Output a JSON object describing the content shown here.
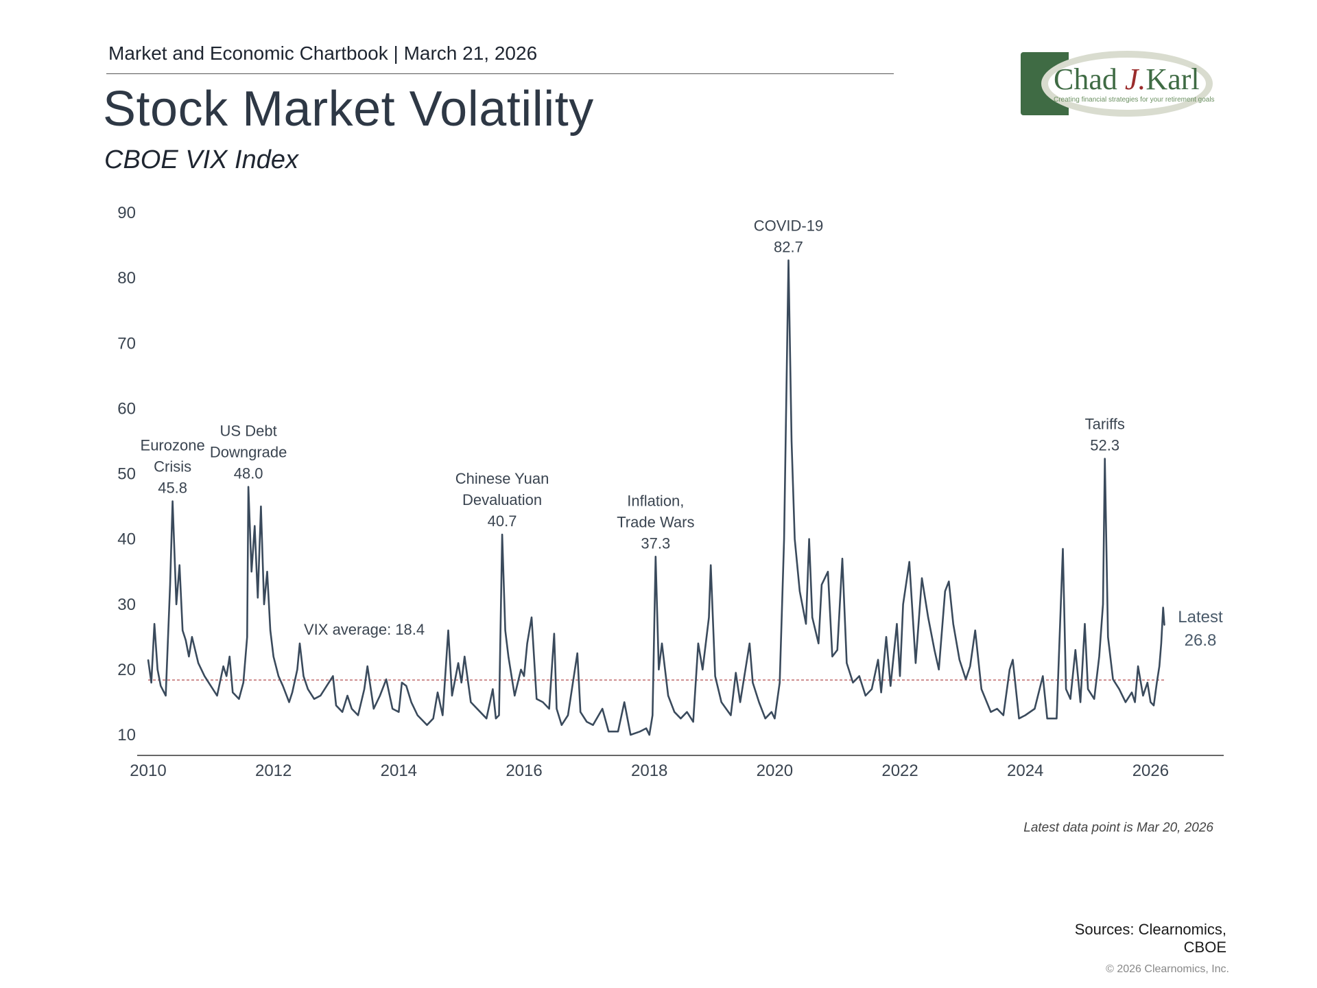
{
  "header": {
    "line": "Market and Economic Chartbook | March 21, 2026",
    "title": "Stock Market Volatility",
    "subtitle": "CBOE VIX Index"
  },
  "logo": {
    "name_part1": "Chad ",
    "name_initial": "J.",
    "name_part2": "Karl",
    "tagline": "Creating financial strategies for your retirement goals",
    "colors": {
      "green": "#3f6b44",
      "red": "#9b2c2c"
    }
  },
  "footer": {
    "latest_note": "Latest data point is Mar 20, 2026",
    "sources_line1": "Sources: Clearnomics,",
    "sources_line2": "CBOE",
    "copyright": "© 2026 Clearnomics, Inc."
  },
  "chart_data": {
    "type": "line",
    "title": "",
    "xlabel": "",
    "ylabel": "",
    "ylim": [
      10,
      90
    ],
    "xlim": [
      2010.0,
      2027.2
    ],
    "yticks": [
      10,
      20,
      30,
      40,
      50,
      60,
      70,
      80,
      90
    ],
    "xticks": [
      "2010",
      "2012",
      "2014",
      "2016",
      "2018",
      "2020",
      "2022",
      "2024",
      "2026"
    ],
    "grid": false,
    "colors": {
      "line": "#3a4a5c",
      "average": "#c0696b",
      "text": "#3a4450"
    },
    "average": {
      "value": 18.4,
      "label": "VIX average: 18.4"
    },
    "latest": {
      "label_line1": "Latest",
      "value": "26.8"
    },
    "annotations": [
      {
        "lines": [
          "Eurozone",
          "Crisis",
          "45.8"
        ],
        "x": 2010.39,
        "y": 45.8
      },
      {
        "lines": [
          "US Debt",
          "Downgrade",
          "48.0"
        ],
        "x": 2011.6,
        "y": 48.0
      },
      {
        "lines": [
          "Chinese Yuan",
          "Devaluation",
          "40.7"
        ],
        "x": 2015.65,
        "y": 40.7
      },
      {
        "lines": [
          "Inflation,",
          "Trade Wars",
          "37.3"
        ],
        "x": 2018.1,
        "y": 37.3
      },
      {
        "lines": [
          "COVID-19",
          "82.7"
        ],
        "x": 2020.22,
        "y": 82.7
      },
      {
        "lines": [
          "Tariffs",
          "52.3"
        ],
        "x": 2025.27,
        "y": 52.3
      }
    ],
    "series": [
      {
        "points": [
          [
            2010.0,
            21.5
          ],
          [
            2010.05,
            18.0
          ],
          [
            2010.1,
            27.0
          ],
          [
            2010.15,
            20.0
          ],
          [
            2010.2,
            17.5
          ],
          [
            2010.28,
            16.0
          ],
          [
            2010.35,
            33.0
          ],
          [
            2010.39,
            45.8
          ],
          [
            2010.45,
            30.0
          ],
          [
            2010.5,
            36.0
          ],
          [
            2010.55,
            26.0
          ],
          [
            2010.6,
            24.5
          ],
          [
            2010.65,
            22.0
          ],
          [
            2010.7,
            25.0
          ],
          [
            2010.8,
            21.0
          ],
          [
            2010.9,
            19.0
          ],
          [
            2011.0,
            17.5
          ],
          [
            2011.1,
            16.0
          ],
          [
            2011.2,
            20.5
          ],
          [
            2011.25,
            19.0
          ],
          [
            2011.3,
            22.0
          ],
          [
            2011.35,
            16.5
          ],
          [
            2011.45,
            15.5
          ],
          [
            2011.52,
            18.0
          ],
          [
            2011.58,
            25.0
          ],
          [
            2011.6,
            48.0
          ],
          [
            2011.65,
            35.0
          ],
          [
            2011.7,
            42.0
          ],
          [
            2011.75,
            31.0
          ],
          [
            2011.8,
            45.0
          ],
          [
            2011.85,
            30.0
          ],
          [
            2011.9,
            35.0
          ],
          [
            2011.95,
            26.0
          ],
          [
            2012.0,
            22.0
          ],
          [
            2012.08,
            19.0
          ],
          [
            2012.15,
            17.5
          ],
          [
            2012.25,
            15.0
          ],
          [
            2012.3,
            16.5
          ],
          [
            2012.38,
            20.0
          ],
          [
            2012.42,
            24.0
          ],
          [
            2012.48,
            19.0
          ],
          [
            2012.55,
            17.0
          ],
          [
            2012.65,
            15.5
          ],
          [
            2012.75,
            16.0
          ],
          [
            2012.85,
            17.5
          ],
          [
            2012.95,
            19.0
          ],
          [
            2013.0,
            14.5
          ],
          [
            2013.1,
            13.5
          ],
          [
            2013.18,
            16.0
          ],
          [
            2013.25,
            14.0
          ],
          [
            2013.35,
            13.0
          ],
          [
            2013.45,
            17.0
          ],
          [
            2013.5,
            20.5
          ],
          [
            2013.6,
            14.0
          ],
          [
            2013.7,
            16.0
          ],
          [
            2013.8,
            18.5
          ],
          [
            2013.9,
            14.0
          ],
          [
            2014.0,
            13.5
          ],
          [
            2014.05,
            18.0
          ],
          [
            2014.12,
            17.5
          ],
          [
            2014.2,
            15.0
          ],
          [
            2014.3,
            13.0
          ],
          [
            2014.45,
            11.5
          ],
          [
            2014.55,
            12.5
          ],
          [
            2014.62,
            16.5
          ],
          [
            2014.7,
            13.0
          ],
          [
            2014.79,
            26.0
          ],
          [
            2014.85,
            16.0
          ],
          [
            2014.95,
            21.0
          ],
          [
            2015.0,
            18.0
          ],
          [
            2015.05,
            22.0
          ],
          [
            2015.15,
            15.0
          ],
          [
            2015.3,
            13.5
          ],
          [
            2015.4,
            12.5
          ],
          [
            2015.5,
            17.0
          ],
          [
            2015.55,
            12.5
          ],
          [
            2015.6,
            13.0
          ],
          [
            2015.65,
            40.7
          ],
          [
            2015.7,
            26.0
          ],
          [
            2015.75,
            22.0
          ],
          [
            2015.85,
            16.0
          ],
          [
            2015.95,
            20.0
          ],
          [
            2016.0,
            19.0
          ],
          [
            2016.05,
            24.0
          ],
          [
            2016.12,
            28.0
          ],
          [
            2016.2,
            15.5
          ],
          [
            2016.3,
            15.0
          ],
          [
            2016.4,
            14.0
          ],
          [
            2016.48,
            25.5
          ],
          [
            2016.52,
            14.0
          ],
          [
            2016.6,
            11.5
          ],
          [
            2016.7,
            13.0
          ],
          [
            2016.85,
            22.5
          ],
          [
            2016.9,
            13.5
          ],
          [
            2017.0,
            12.0
          ],
          [
            2017.1,
            11.5
          ],
          [
            2017.25,
            14.0
          ],
          [
            2017.35,
            10.5
          ],
          [
            2017.5,
            10.5
          ],
          [
            2017.6,
            15.0
          ],
          [
            2017.7,
            10.0
          ],
          [
            2017.85,
            10.5
          ],
          [
            2017.95,
            11.0
          ],
          [
            2018.0,
            10.0
          ],
          [
            2018.05,
            13.0
          ],
          [
            2018.1,
            37.3
          ],
          [
            2018.15,
            20.0
          ],
          [
            2018.2,
            24.0
          ],
          [
            2018.3,
            16.0
          ],
          [
            2018.4,
            13.5
          ],
          [
            2018.5,
            12.5
          ],
          [
            2018.6,
            13.5
          ],
          [
            2018.7,
            12.0
          ],
          [
            2018.78,
            24.0
          ],
          [
            2018.85,
            20.0
          ],
          [
            2018.95,
            28.0
          ],
          [
            2018.98,
            36.0
          ],
          [
            2019.05,
            19.0
          ],
          [
            2019.15,
            15.0
          ],
          [
            2019.3,
            13.0
          ],
          [
            2019.38,
            19.5
          ],
          [
            2019.45,
            15.0
          ],
          [
            2019.6,
            24.0
          ],
          [
            2019.65,
            18.0
          ],
          [
            2019.75,
            15.0
          ],
          [
            2019.85,
            12.5
          ],
          [
            2019.95,
            13.5
          ],
          [
            2020.0,
            12.5
          ],
          [
            2020.08,
            18.0
          ],
          [
            2020.15,
            40.0
          ],
          [
            2020.22,
            82.7
          ],
          [
            2020.27,
            55.0
          ],
          [
            2020.32,
            40.0
          ],
          [
            2020.4,
            32.0
          ],
          [
            2020.5,
            27.0
          ],
          [
            2020.55,
            40.0
          ],
          [
            2020.6,
            28.0
          ],
          [
            2020.7,
            24.0
          ],
          [
            2020.75,
            33.0
          ],
          [
            2020.85,
            35.0
          ],
          [
            2020.92,
            22.0
          ],
          [
            2021.0,
            23.0
          ],
          [
            2021.08,
            37.0
          ],
          [
            2021.15,
            21.0
          ],
          [
            2021.25,
            18.0
          ],
          [
            2021.35,
            19.0
          ],
          [
            2021.45,
            16.0
          ],
          [
            2021.55,
            17.0
          ],
          [
            2021.65,
            21.5
          ],
          [
            2021.7,
            16.5
          ],
          [
            2021.78,
            25.0
          ],
          [
            2021.85,
            17.5
          ],
          [
            2021.95,
            27.0
          ],
          [
            2022.0,
            19.0
          ],
          [
            2022.05,
            30.0
          ],
          [
            2022.15,
            36.5
          ],
          [
            2022.25,
            21.0
          ],
          [
            2022.35,
            34.0
          ],
          [
            2022.45,
            28.0
          ],
          [
            2022.55,
            23.0
          ],
          [
            2022.62,
            20.0
          ],
          [
            2022.72,
            32.0
          ],
          [
            2022.78,
            33.5
          ],
          [
            2022.85,
            27.0
          ],
          [
            2022.95,
            21.5
          ],
          [
            2023.05,
            18.5
          ],
          [
            2023.12,
            20.5
          ],
          [
            2023.2,
            26.0
          ],
          [
            2023.3,
            17.0
          ],
          [
            2023.45,
            13.5
          ],
          [
            2023.55,
            14.0
          ],
          [
            2023.65,
            13.0
          ],
          [
            2023.75,
            20.0
          ],
          [
            2023.8,
            21.5
          ],
          [
            2023.9,
            12.5
          ],
          [
            2024.0,
            13.0
          ],
          [
            2024.15,
            14.0
          ],
          [
            2024.28,
            19.0
          ],
          [
            2024.35,
            12.5
          ],
          [
            2024.5,
            12.5
          ],
          [
            2024.6,
            38.5
          ],
          [
            2024.65,
            17.0
          ],
          [
            2024.72,
            15.5
          ],
          [
            2024.8,
            23.0
          ],
          [
            2024.88,
            15.0
          ],
          [
            2024.95,
            27.0
          ],
          [
            2025.0,
            17.0
          ],
          [
            2025.1,
            15.5
          ],
          [
            2025.18,
            22.0
          ],
          [
            2025.24,
            30.0
          ],
          [
            2025.27,
            52.3
          ],
          [
            2025.32,
            25.0
          ],
          [
            2025.4,
            18.5
          ],
          [
            2025.5,
            17.0
          ],
          [
            2025.6,
            15.0
          ],
          [
            2025.7,
            16.5
          ],
          [
            2025.75,
            15.0
          ],
          [
            2025.8,
            20.5
          ],
          [
            2025.88,
            16.0
          ],
          [
            2025.95,
            18.0
          ],
          [
            2026.0,
            15.0
          ],
          [
            2026.05,
            14.5
          ],
          [
            2026.1,
            18.0
          ],
          [
            2026.14,
            20.5
          ],
          [
            2026.17,
            24.0
          ],
          [
            2026.2,
            29.5
          ],
          [
            2026.22,
            26.8
          ]
        ]
      }
    ]
  }
}
